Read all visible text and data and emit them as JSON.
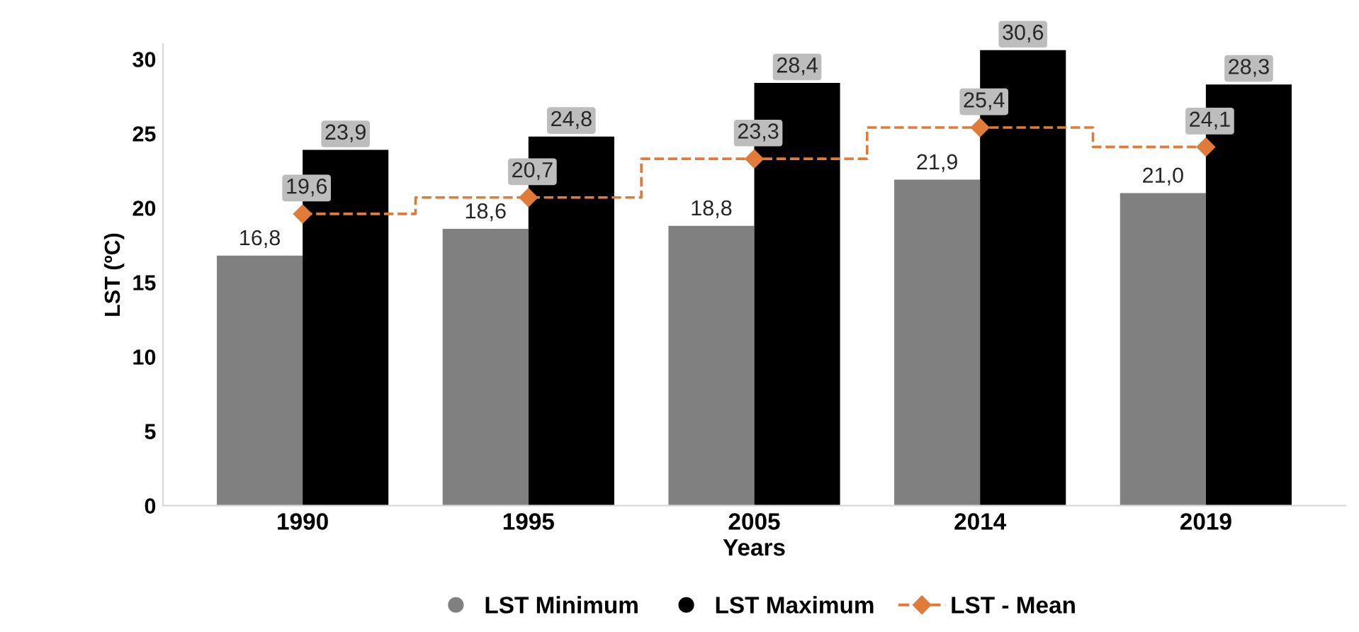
{
  "chart_data": {
    "type": "bar",
    "xlabel": "Years",
    "ylabel": "LST (ºC)",
    "categories": [
      "1990",
      "1995",
      "2005",
      "2014",
      "2019"
    ],
    "series": [
      {
        "name": "LST Minimum",
        "color": "#808080",
        "values": [
          16.8,
          18.6,
          18.8,
          21.9,
          21.0
        ],
        "value_labels": [
          "16,8",
          "18,6",
          "18,8",
          "21,9",
          "21,0"
        ]
      },
      {
        "name": "LST Maximum",
        "color": "#000000",
        "values": [
          23.9,
          24.8,
          28.4,
          30.6,
          28.3
        ],
        "value_labels": [
          "23,9",
          "24,8",
          "28,4",
          "30,6",
          "28,3"
        ]
      },
      {
        "name": "LST - Mean",
        "type": "step",
        "color": "#e07b39",
        "marker": "diamond",
        "line_style": "dashed",
        "values": [
          19.6,
          20.7,
          23.3,
          25.4,
          24.1
        ],
        "value_labels": [
          "19,6",
          "20,7",
          "23,3",
          "25,4",
          "24,1"
        ]
      }
    ],
    "ylim": [
      0,
      31
    ],
    "yticks": [
      0,
      5,
      10,
      15,
      20,
      25,
      30
    ],
    "grid": false,
    "legend": "bottom"
  }
}
